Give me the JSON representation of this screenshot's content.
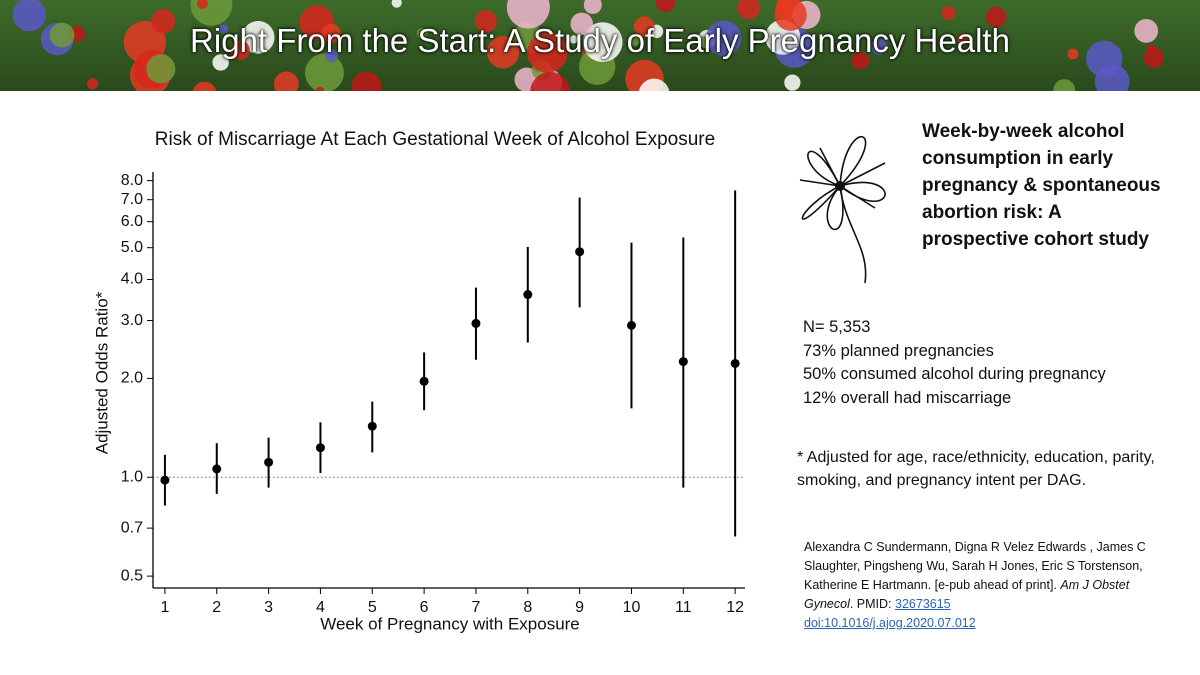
{
  "header": {
    "title": "Right From the Start: A Study of Early Pregnancy Health"
  },
  "chart_data": {
    "type": "errorbar",
    "title": "Risk of Miscarriage At Each Gestational Week of Alcohol Exposure",
    "x_label": "Week of Pregnancy with Exposure",
    "y_label": "Adjusted Odds Ratio*",
    "x": [
      1,
      2,
      3,
      4,
      5,
      6,
      7,
      8,
      9,
      10,
      11,
      12
    ],
    "series": [
      {
        "color": "#000000",
        "values": [
          0.98,
          1.06,
          1.11,
          1.23,
          1.43,
          1.96,
          2.94,
          3.6,
          4.86,
          2.9,
          2.25,
          2.22
        ],
        "lower": [
          0.82,
          0.89,
          0.93,
          1.03,
          1.19,
          1.6,
          2.28,
          2.57,
          3.29,
          1.62,
          0.93,
          0.66
        ],
        "upper": [
          1.17,
          1.27,
          1.32,
          1.47,
          1.7,
          2.4,
          3.78,
          5.03,
          7.1,
          5.18,
          5.37,
          7.47
        ]
      }
    ],
    "xlim": [
      0.77,
      12.19
    ],
    "xticks": [
      1,
      2,
      3,
      4,
      5,
      6,
      7,
      8,
      9,
      10,
      11,
      12
    ],
    "ylim": [
      0.46,
      8.5
    ],
    "log_y": true,
    "yticks": [
      0.5,
      0.7,
      {
        "value": 1,
        "label": "1.0"
      },
      {
        "value": 2,
        "label": "2.0"
      },
      {
        "value": 3,
        "label": "3.0"
      },
      {
        "value": 4,
        "label": "4.0"
      },
      {
        "value": 5,
        "label": "5.0"
      },
      {
        "value": 6,
        "label": "6.0"
      },
      {
        "value": 7,
        "label": "7.0"
      },
      {
        "value": 8,
        "label": "8.0"
      }
    ],
    "reference_line": 1
  },
  "panel": {
    "heading": "Week-by-week alcohol consumption in early pregnancy & spontaneous abortion risk: A prospective cohort study",
    "stats": [
      "N= 5,353",
      "73% planned pregnancies",
      "50% consumed alcohol during pregnancy",
      "12% overall had miscarriage"
    ],
    "footnote": "* Adjusted for age, race/ethnicity, education, parity, smoking, and pregnancy intent per DAG.",
    "citation": {
      "authors": "Alexandra C Sundermann,  Digna R Velez Edwards , James C Slaughter, Pingsheng Wu, Sarah H Jones, Eric S Torstenson, Katherine E Hartmann. [e-pub ahead of print].",
      "journal": "Am J Obstet Gynecol",
      "pmid_label": ". PMID:",
      "pmid": "32673615",
      "doi": "doi:10.1016/j.ajog.2020.07.012"
    }
  }
}
